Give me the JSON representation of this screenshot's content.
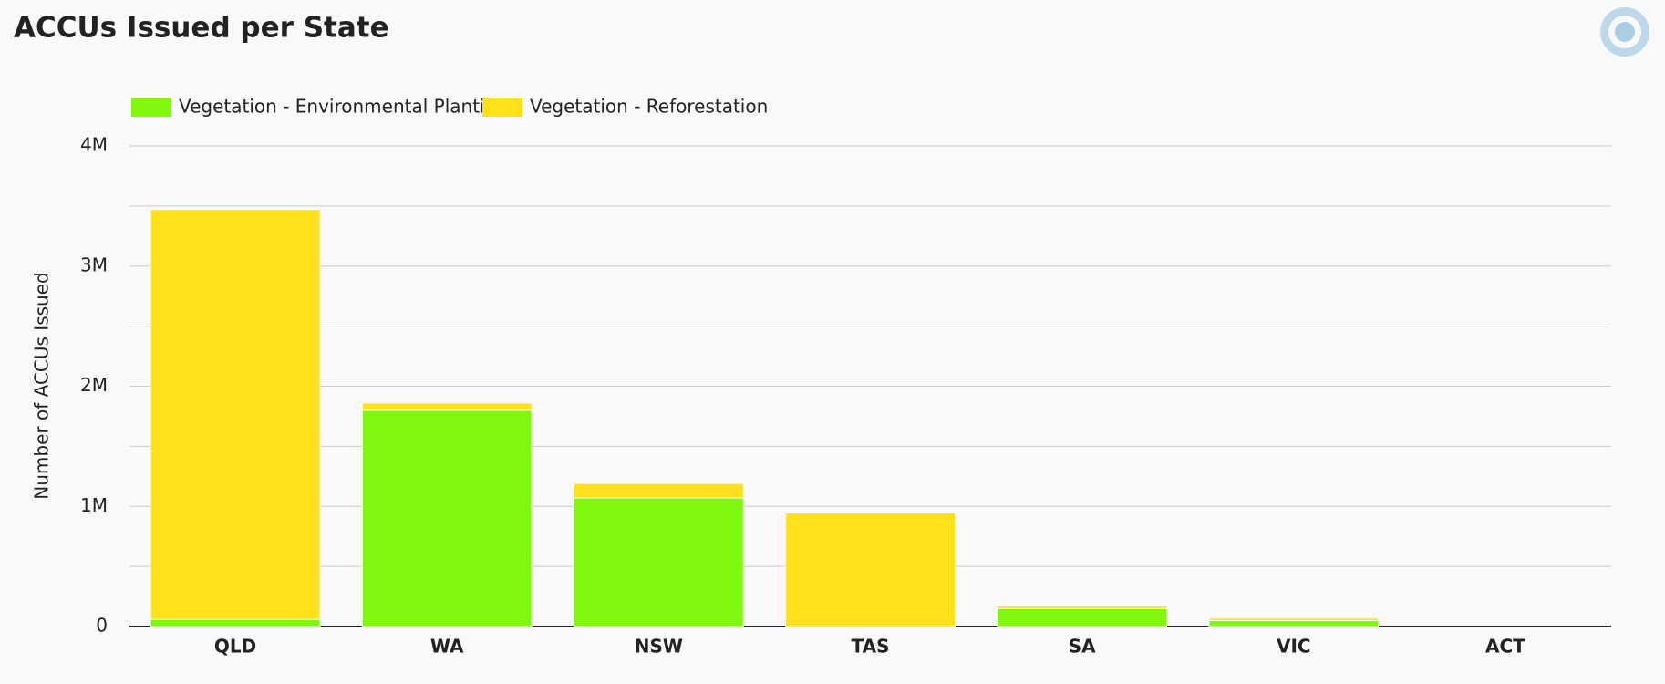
{
  "chart_data": {
    "type": "stacked_bar",
    "title": "ACCUs Issued per State",
    "y_label": "Number of ACCUs Issued",
    "categories": [
      "QLD",
      "WA",
      "NSW",
      "TAS",
      "SA",
      "VIC",
      "ACT"
    ],
    "series": [
      {
        "name": "Vegetation - Environmental Planting",
        "color": "#7ff70e",
        "values": [
          60000,
          1800000,
          1070000,
          0,
          150000,
          50000,
          0
        ]
      },
      {
        "name": "Vegetation - Reforestation",
        "color": "#ffe01a",
        "values": [
          3410000,
          60000,
          120000,
          945000,
          20000,
          20000,
          0
        ]
      }
    ],
    "ylim": [
      0,
      4000000
    ],
    "yticks": [
      0,
      {
        "value": 1000000,
        "label": "1M"
      },
      {
        "value": 2000000,
        "label": "2M"
      },
      {
        "value": 3000000,
        "label": "3M"
      },
      {
        "value": 4000000,
        "label": "4M"
      }
    ],
    "grid": true,
    "minor_grid": true,
    "legend": "top-left"
  }
}
